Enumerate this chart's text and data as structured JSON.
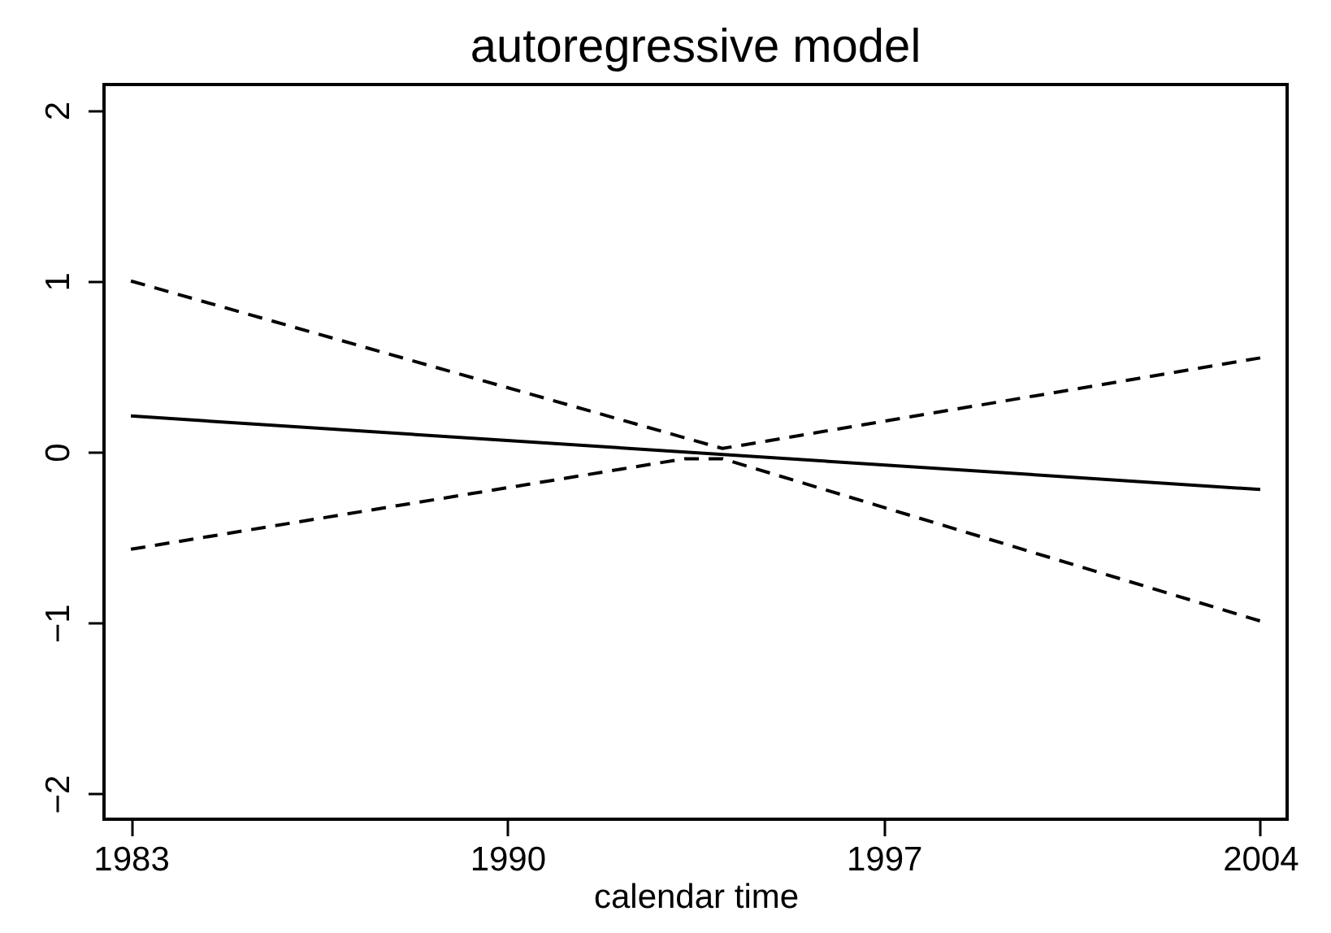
{
  "chart_data": {
    "type": "line",
    "title": "autoregressive model",
    "xlabel": "calendar time",
    "xlim": [
      1982.5,
      2004.5
    ],
    "xticks": [
      1983,
      1990,
      1997,
      2004
    ],
    "ylim": [
      -2.15,
      2.15
    ],
    "yticks": [
      -2,
      -1,
      0,
      1,
      2
    ],
    "grid": false,
    "series": [
      {
        "color": "#000000",
        "line_style": "solid",
        "x": [
          1983,
          2004
        ],
        "values": [
          0.21,
          -0.22
        ]
      },
      {
        "color": "#000000",
        "line_style": "dashed",
        "x": [
          1983,
          1994,
          2004
        ],
        "values": [
          1.0,
          0.02,
          0.55
        ]
      },
      {
        "color": "#000000",
        "line_style": "dashed",
        "x": [
          1983,
          1993.3,
          1994,
          2004
        ],
        "values": [
          -0.57,
          -0.04,
          -0.04,
          -0.99
        ]
      }
    ]
  }
}
